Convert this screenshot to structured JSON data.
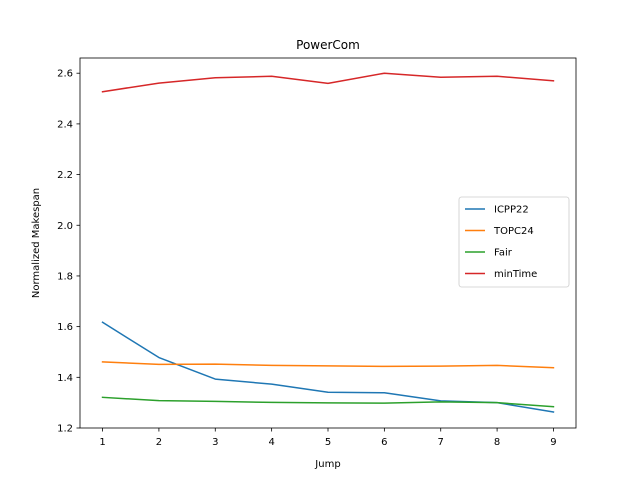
{
  "chart_data": {
    "type": "line",
    "title": "PowerCom",
    "xlabel": "Jump",
    "ylabel": "Normalized Makespan",
    "x": [
      1,
      2,
      3,
      4,
      5,
      6,
      7,
      8,
      9
    ],
    "xlim": [
      0.6,
      9.4
    ],
    "ylim": [
      1.2,
      2.66
    ],
    "xticks": [
      "1",
      "2",
      "3",
      "4",
      "5",
      "6",
      "7",
      "8",
      "9"
    ],
    "yticks": [
      "1.2",
      "1.4",
      "1.6",
      "1.8",
      "2.0",
      "2.2",
      "2.4",
      "2.6"
    ],
    "ytick_values": [
      1.2,
      1.4,
      1.6,
      1.8,
      2.0,
      2.2,
      2.4,
      2.6
    ],
    "grid": false,
    "legend_position": "center-right",
    "series": [
      {
        "name": "ICPP22",
        "color": "#1f77b4",
        "values": [
          1.617,
          1.478,
          1.393,
          1.373,
          1.341,
          1.339,
          1.307,
          1.3,
          1.263
        ]
      },
      {
        "name": "TOPC24",
        "color": "#ff7f0e",
        "values": [
          1.461,
          1.451,
          1.452,
          1.447,
          1.445,
          1.443,
          1.444,
          1.447,
          1.438
        ]
      },
      {
        "name": "Fair",
        "color": "#2ca02c",
        "values": [
          1.321,
          1.308,
          1.305,
          1.301,
          1.299,
          1.298,
          1.303,
          1.3,
          1.284
        ]
      },
      {
        "name": "minTime",
        "color": "#d62728",
        "values": [
          2.527,
          2.561,
          2.582,
          2.588,
          2.56,
          2.6,
          2.584,
          2.588,
          2.57
        ]
      }
    ]
  }
}
